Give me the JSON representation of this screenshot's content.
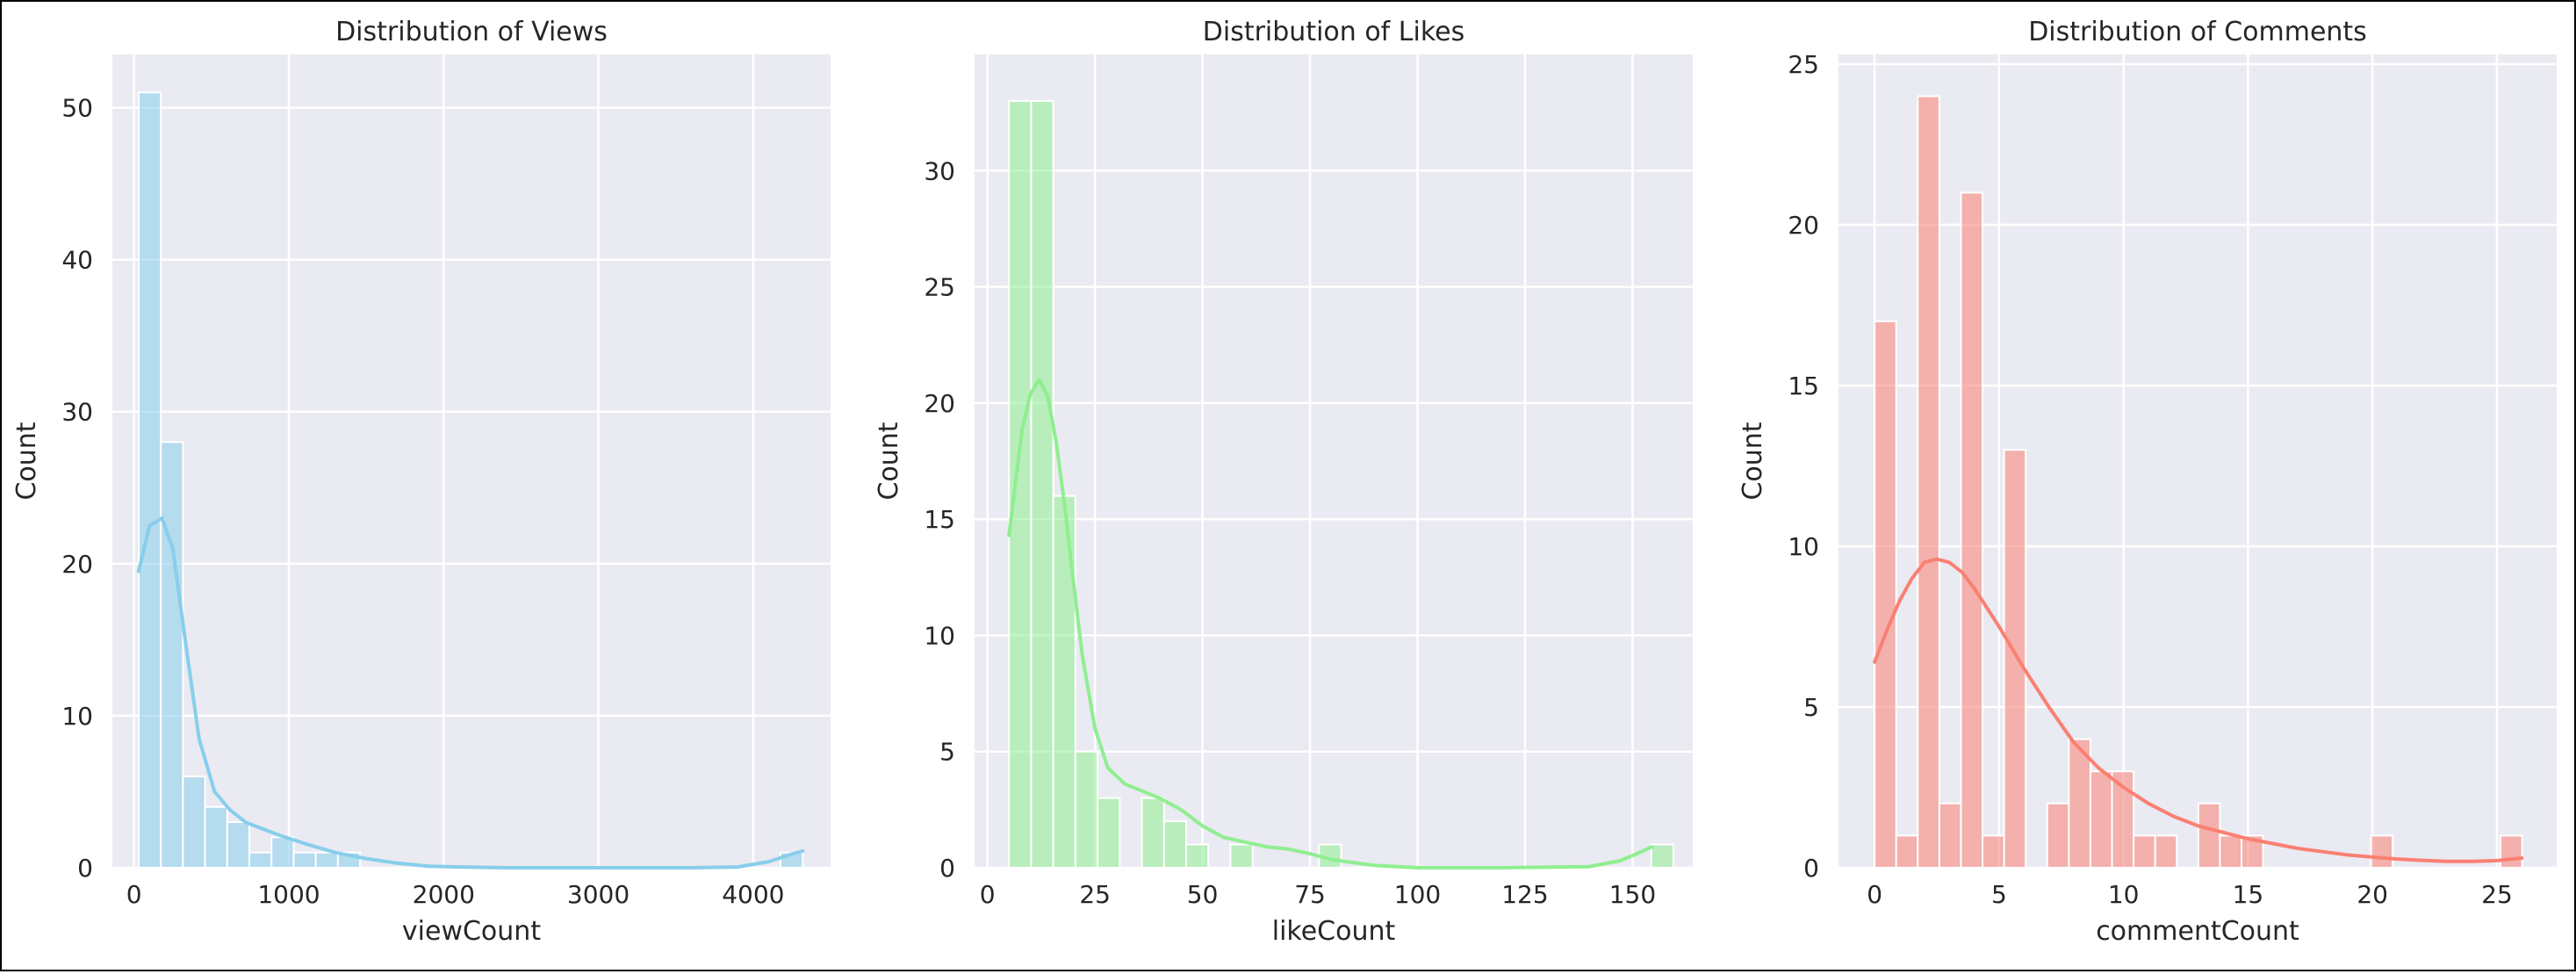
{
  "chart_data": [
    {
      "type": "bar",
      "title": "Distribution of Views",
      "xlabel": "viewCount",
      "ylabel": "Count",
      "xlim": [
        -140,
        4500
      ],
      "ylim": [
        0,
        53.5
      ],
      "xticks": [
        0,
        1000,
        2000,
        3000,
        4000
      ],
      "yticks": [
        0,
        10,
        20,
        30,
        40,
        50
      ],
      "bin_start": 30,
      "bin_width": 143,
      "counts": [
        51,
        28,
        6,
        4,
        3,
        1,
        2,
        1,
        1,
        1,
        0,
        0,
        0,
        0,
        0,
        0,
        0,
        0,
        0,
        0,
        0,
        0,
        0,
        0,
        0,
        0,
        0,
        0,
        0,
        1
      ],
      "kde": {
        "x": [
          30,
          100,
          180,
          250,
          330,
          420,
          520,
          620,
          720,
          820,
          950,
          1100,
          1300,
          1500,
          1700,
          1900,
          2100,
          2400,
          3000,
          3600,
          3900,
          4100,
          4250,
          4320
        ],
        "y": [
          19.5,
          22.5,
          23,
          21,
          15,
          8.5,
          5,
          3.8,
          3,
          2.6,
          2.1,
          1.6,
          1.0,
          0.6,
          0.3,
          0.1,
          0.05,
          0,
          0,
          0,
          0.05,
          0.4,
          0.9,
          1.1
        ]
      },
      "grid": true,
      "color": "#87ceeb"
    },
    {
      "type": "bar",
      "title": "Distribution of Likes",
      "xlabel": "likeCount",
      "ylabel": "Count",
      "xlim": [
        -3,
        164
      ],
      "ylim": [
        0,
        35
      ],
      "xticks": [
        0,
        25,
        50,
        75,
        100,
        125,
        150
      ],
      "yticks": [
        0,
        5,
        10,
        15,
        20,
        25,
        30
      ],
      "bin_start": 5,
      "bin_width": 5.15,
      "counts": [
        33,
        33,
        16,
        5,
        3,
        0,
        3,
        2,
        1,
        0,
        1,
        0,
        0,
        0,
        1,
        0,
        0,
        0,
        0,
        0,
        0,
        0,
        0,
        0,
        0,
        0,
        0,
        0,
        0,
        1
      ],
      "kde": {
        "x": [
          5,
          8,
          10,
          12,
          14,
          16,
          18,
          20,
          22,
          25,
          28,
          32,
          36,
          40,
          45,
          50,
          55,
          60,
          65,
          70,
          75,
          80,
          90,
          100,
          120,
          140,
          147,
          151,
          154.5
        ],
        "y": [
          14.3,
          18.8,
          20.4,
          21,
          20.3,
          18.3,
          15.5,
          12.3,
          9.2,
          6,
          4.3,
          3.6,
          3.3,
          3,
          2.5,
          1.8,
          1.3,
          1.1,
          0.9,
          0.8,
          0.6,
          0.35,
          0.1,
          0,
          0,
          0.05,
          0.3,
          0.6,
          0.9
        ]
      },
      "grid": true,
      "color": "#90ee90"
    },
    {
      "type": "bar",
      "title": "Distribution of Comments",
      "xlabel": "commentCount",
      "ylabel": "Count",
      "xlim": [
        -1.45,
        27.4
      ],
      "ylim": [
        0,
        25.3
      ],
      "xticks": [
        0,
        5,
        10,
        15,
        20,
        25
      ],
      "yticks": [
        0,
        5,
        10,
        15,
        20,
        25
      ],
      "bin_start": 0,
      "bin_width": 0.867,
      "counts": [
        17,
        1,
        24,
        2,
        21,
        1,
        13,
        0,
        2,
        4,
        3,
        3,
        1,
        1,
        0,
        2,
        1,
        1,
        0,
        0,
        0,
        0,
        0,
        1,
        0,
        0,
        0,
        0,
        0,
        1
      ],
      "kde": {
        "x": [
          0,
          0.5,
          1,
          1.5,
          2,
          2.5,
          3,
          3.5,
          4,
          4.5,
          5,
          6,
          7,
          8,
          9,
          10,
          11,
          12,
          13,
          14,
          15,
          16,
          17,
          18,
          19,
          20,
          21,
          22,
          23,
          24,
          25,
          26
        ],
        "y": [
          6.4,
          7.4,
          8.3,
          9,
          9.5,
          9.6,
          9.5,
          9.2,
          8.7,
          8.1,
          7.5,
          6.2,
          5,
          3.9,
          3.1,
          2.5,
          2,
          1.6,
          1.3,
          1.1,
          0.9,
          0.75,
          0.6,
          0.5,
          0.4,
          0.33,
          0.27,
          0.23,
          0.2,
          0.2,
          0.22,
          0.3
        ]
      },
      "grid": true,
      "color": "#fa8072"
    }
  ]
}
